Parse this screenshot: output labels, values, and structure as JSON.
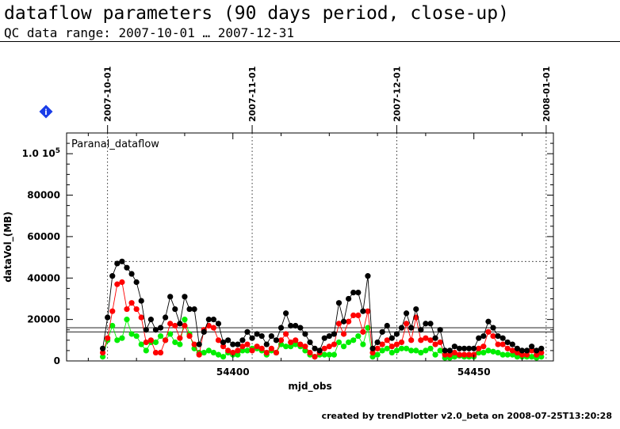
{
  "header": {
    "title": "dataflow parameters (90 days period, close-up)",
    "subtitle": "QC data range: 2007-10-01 … 2007-12-31"
  },
  "footer": {
    "credit": "created by trendPlotter v2.0_beta on 2008-07-25T13:20:28"
  },
  "info_badge": {
    "label": "i",
    "color": "#1a3de8"
  },
  "chart_data": {
    "type": "scatter",
    "title": "Paranal_dataflow",
    "xlabel": "mjd_obs",
    "ylabel": "dataVol_(MB)",
    "xlim": [
      54365.5,
      54466.5
    ],
    "ylim": [
      0,
      110000
    ],
    "x_ticks": [
      54400,
      54450
    ],
    "y_ticks": [
      {
        "value": 0,
        "label": "0"
      },
      {
        "value": 20000,
        "label": "20000"
      },
      {
        "value": 40000,
        "label": "40000"
      },
      {
        "value": 60000,
        "label": "60000"
      },
      {
        "value": 80000,
        "label": "80000"
      },
      {
        "value": 100000,
        "label": "1.0 10⁵"
      }
    ],
    "date_markers": [
      {
        "x": 54374,
        "label": "2007-10-01"
      },
      {
        "x": 54404,
        "label": "2007-11-01"
      },
      {
        "x": 54434,
        "label": "2007-12-01"
      },
      {
        "x": 54465,
        "label": "2008-01-01"
      }
    ],
    "reference_lines": {
      "dotted_y": 48000,
      "solid_y": [
        16000,
        14000
      ]
    },
    "x": [
      54373,
      54374,
      54375,
      54376,
      54377,
      54378,
      54379,
      54380,
      54381,
      54382,
      54383,
      54384,
      54385,
      54386,
      54387,
      54388,
      54389,
      54390,
      54391,
      54392,
      54393,
      54394,
      54395,
      54396,
      54397,
      54398,
      54399,
      54400,
      54401,
      54402,
      54403,
      54404,
      54405,
      54406,
      54407,
      54408,
      54409,
      54410,
      54411,
      54412,
      54413,
      54414,
      54415,
      54416,
      54417,
      54418,
      54419,
      54420,
      54421,
      54422,
      54423,
      54424,
      54425,
      54426,
      54427,
      54428,
      54429,
      54430,
      54431,
      54432,
      54433,
      54434,
      54435,
      54436,
      54437,
      54438,
      54439,
      54440,
      54441,
      54442,
      54443,
      54444,
      54445,
      54446,
      54447,
      54448,
      54449,
      54450,
      54451,
      54452,
      54453,
      54454,
      54455,
      54456,
      54457,
      54458,
      54459,
      54460,
      54461,
      54462,
      54463,
      54464
    ],
    "series": [
      {
        "color": "#000000",
        "values": [
          6000,
          21000,
          41000,
          47000,
          48000,
          45000,
          42000,
          38000,
          29000,
          15000,
          20000,
          15000,
          16000,
          21000,
          31000,
          25000,
          18000,
          31000,
          25000,
          25000,
          8000,
          14000,
          20000,
          20000,
          18000,
          9000,
          10000,
          8000,
          8000,
          10000,
          14000,
          11000,
          13000,
          12000,
          8000,
          12000,
          10000,
          16000,
          23000,
          17000,
          17000,
          16000,
          13000,
          9000,
          6000,
          5000,
          11000,
          12000,
          13000,
          28000,
          19000,
          30000,
          33000,
          33000,
          24000,
          41000,
          6000,
          9000,
          14000,
          17000,
          11000,
          13000,
          16000,
          23000,
          16000,
          25000,
          15000,
          18000,
          18000,
          11000,
          15000,
          5000,
          5000,
          7000,
          6000,
          6000,
          6000,
          6000,
          11000,
          12000,
          19000,
          16000,
          12000,
          11000,
          9000,
          8000,
          6000,
          5000,
          5000,
          7000,
          5000,
          6000
        ]
      },
      {
        "color": "#ff0000",
        "values": [
          4000,
          11000,
          24000,
          37000,
          38000,
          25000,
          28000,
          25000,
          21000,
          9000,
          10000,
          4000,
          4000,
          10000,
          18000,
          17000,
          11000,
          17000,
          12000,
          8000,
          3000,
          15000,
          17000,
          16000,
          10000,
          7000,
          5000,
          4000,
          5000,
          7000,
          8000,
          5000,
          7000,
          6000,
          4000,
          6000,
          4000,
          10000,
          13000,
          9000,
          10000,
          8000,
          7000,
          4000,
          2000,
          4000,
          6000,
          7000,
          8000,
          18000,
          13000,
          19000,
          22000,
          22000,
          14000,
          24000,
          4000,
          6000,
          8000,
          10000,
          7000,
          8000,
          9000,
          18000,
          10000,
          21000,
          10000,
          11000,
          10000,
          8000,
          9000,
          3000,
          3000,
          4000,
          3000,
          3000,
          3000,
          3000,
          6000,
          7000,
          14000,
          12000,
          8000,
          8000,
          6000,
          5000,
          4000,
          3000,
          3000,
          5000,
          3000,
          4000
        ]
      },
      {
        "color": "#00ee00",
        "values": [
          2000,
          10000,
          17000,
          10000,
          11000,
          20000,
          13000,
          12000,
          8000,
          5000,
          9000,
          9000,
          12000,
          10000,
          13000,
          9000,
          8000,
          20000,
          13000,
          6000,
          4000,
          4000,
          5000,
          4000,
          3000,
          2000,
          4000,
          3000,
          3000,
          5000,
          5000,
          6000,
          6000,
          5000,
          3000,
          5000,
          4000,
          8000,
          7000,
          7000,
          8000,
          7000,
          5000,
          3000,
          2000,
          3000,
          3000,
          3000,
          3000,
          9000,
          7000,
          9000,
          10000,
          12000,
          8000,
          16000,
          2000,
          3000,
          5000,
          6000,
          4000,
          5000,
          6000,
          6000,
          5000,
          5000,
          4000,
          5000,
          6000,
          3000,
          5000,
          1500,
          1500,
          2000,
          2500,
          2000,
          2000,
          2000,
          4000,
          4000,
          5000,
          4500,
          4000,
          3000,
          3000,
          3000,
          2000,
          2000,
          2000,
          2000,
          1500,
          2000
        ]
      }
    ]
  }
}
